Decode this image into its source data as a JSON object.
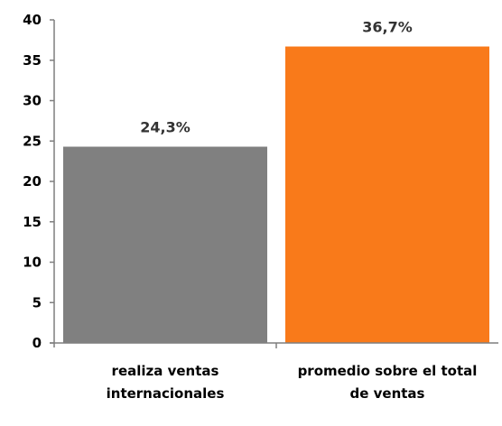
{
  "chart_data": {
    "type": "bar",
    "categories": [
      [
        "realiza ventas",
        "internacionales"
      ],
      [
        "promedio sobre el total",
        "de ventas"
      ]
    ],
    "values": [
      24.3,
      36.7
    ],
    "data_labels": [
      "24,3%",
      "36,7%"
    ],
    "colors": [
      "#808080",
      "#F97A1A"
    ],
    "ylim": [
      0,
      40
    ],
    "yticks": [
      0,
      5,
      10,
      15,
      20,
      25,
      30,
      35,
      40
    ],
    "grid": false,
    "legend": "none"
  }
}
